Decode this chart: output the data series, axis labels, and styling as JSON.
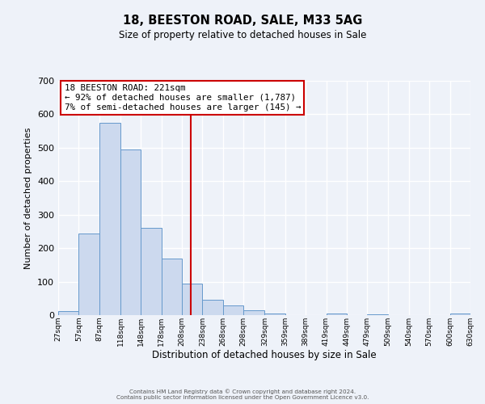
{
  "title": "18, BEESTON ROAD, SALE, M33 5AG",
  "subtitle": "Size of property relative to detached houses in Sale",
  "xlabel": "Distribution of detached houses by size in Sale",
  "ylabel": "Number of detached properties",
  "bar_color": "#ccd9ee",
  "bar_edge_color": "#6699cc",
  "background_color": "#eef2f9",
  "grid_color": "#ffffff",
  "bin_edges": [
    27,
    57,
    87,
    118,
    148,
    178,
    208,
    238,
    268,
    298,
    329,
    359,
    389,
    419,
    449,
    479,
    509,
    540,
    570,
    600,
    630
  ],
  "bar_heights": [
    12,
    245,
    575,
    495,
    260,
    170,
    93,
    47,
    28,
    14,
    5,
    0,
    0,
    5,
    0,
    3,
    0,
    0,
    0,
    5
  ],
  "vline_x": 221,
  "vline_color": "#cc0000",
  "annotation_title": "18 BEESTON ROAD: 221sqm",
  "annotation_line1": "← 92% of detached houses are smaller (1,787)",
  "annotation_line2": "7% of semi-detached houses are larger (145) →",
  "annotation_box_color": "#ffffff",
  "annotation_border_color": "#cc0000",
  "ylim": [
    0,
    700
  ],
  "yticks": [
    0,
    100,
    200,
    300,
    400,
    500,
    600,
    700
  ],
  "tick_labels": [
    "27sqm",
    "57sqm",
    "87sqm",
    "118sqm",
    "148sqm",
    "178sqm",
    "208sqm",
    "238sqm",
    "268sqm",
    "298sqm",
    "329sqm",
    "359sqm",
    "389sqm",
    "419sqm",
    "449sqm",
    "479sqm",
    "509sqm",
    "540sqm",
    "570sqm",
    "600sqm",
    "630sqm"
  ],
  "footer1": "Contains HM Land Registry data © Crown copyright and database right 2024.",
  "footer2": "Contains public sector information licensed under the Open Government Licence v3.0."
}
